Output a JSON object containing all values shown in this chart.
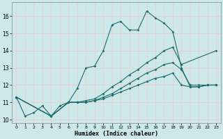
{
  "xlabel": "Humidex (Indice chaleur)",
  "bg_color": "#cce8e8",
  "grid_color": "#f0c8c8",
  "line_color": "#1a6b6b",
  "xlim": [
    -0.5,
    23.5
  ],
  "ylim": [
    9.8,
    16.8
  ],
  "yticks": [
    10,
    11,
    12,
    13,
    14,
    15,
    16
  ],
  "xticks": [
    0,
    1,
    2,
    3,
    4,
    5,
    6,
    7,
    8,
    9,
    10,
    11,
    12,
    13,
    14,
    15,
    16,
    17,
    18,
    19,
    20,
    21,
    22,
    23
  ],
  "lines": [
    {
      "x": [
        0,
        1,
        2,
        3,
        4,
        5,
        6,
        7,
        8,
        9,
        10,
        11,
        12,
        13,
        14,
        15,
        16,
        17,
        18,
        19,
        20,
        21,
        22,
        23
      ],
      "y": [
        11.3,
        10.2,
        10.4,
        10.8,
        10.2,
        10.8,
        11.0,
        11.8,
        13.0,
        13.1,
        14.0,
        15.5,
        15.7,
        15.2,
        15.2,
        16.3,
        15.9,
        15.6,
        15.1,
        13.0,
        11.9,
        11.9,
        12.0,
        12.0
      ]
    },
    {
      "x": [
        0,
        4,
        6,
        7,
        8,
        9,
        10,
        11,
        12,
        13,
        14,
        15,
        16,
        17,
        18,
        19,
        23
      ],
      "y": [
        11.3,
        10.2,
        11.0,
        11.0,
        11.1,
        11.2,
        11.5,
        11.9,
        12.2,
        12.6,
        12.9,
        13.3,
        13.6,
        14.0,
        14.2,
        13.2,
        14.0
      ]
    },
    {
      "x": [
        0,
        4,
        6,
        7,
        8,
        9,
        10,
        11,
        12,
        13,
        14,
        15,
        16,
        17,
        18,
        19,
        20,
        21,
        22,
        23
      ],
      "y": [
        11.3,
        10.2,
        11.0,
        11.0,
        11.0,
        11.1,
        11.3,
        11.5,
        11.8,
        12.1,
        12.4,
        12.7,
        12.9,
        13.2,
        13.3,
        12.9,
        12.0,
        12.0,
        12.0,
        12.0
      ]
    },
    {
      "x": [
        0,
        4,
        6,
        7,
        8,
        9,
        10,
        11,
        12,
        13,
        14,
        15,
        16,
        17,
        18,
        19,
        20,
        21,
        22,
        23
      ],
      "y": [
        11.3,
        10.2,
        11.0,
        11.0,
        11.0,
        11.1,
        11.2,
        11.4,
        11.6,
        11.8,
        12.0,
        12.2,
        12.4,
        12.5,
        12.7,
        12.0,
        11.9,
        11.9,
        12.0,
        12.0
      ]
    }
  ]
}
